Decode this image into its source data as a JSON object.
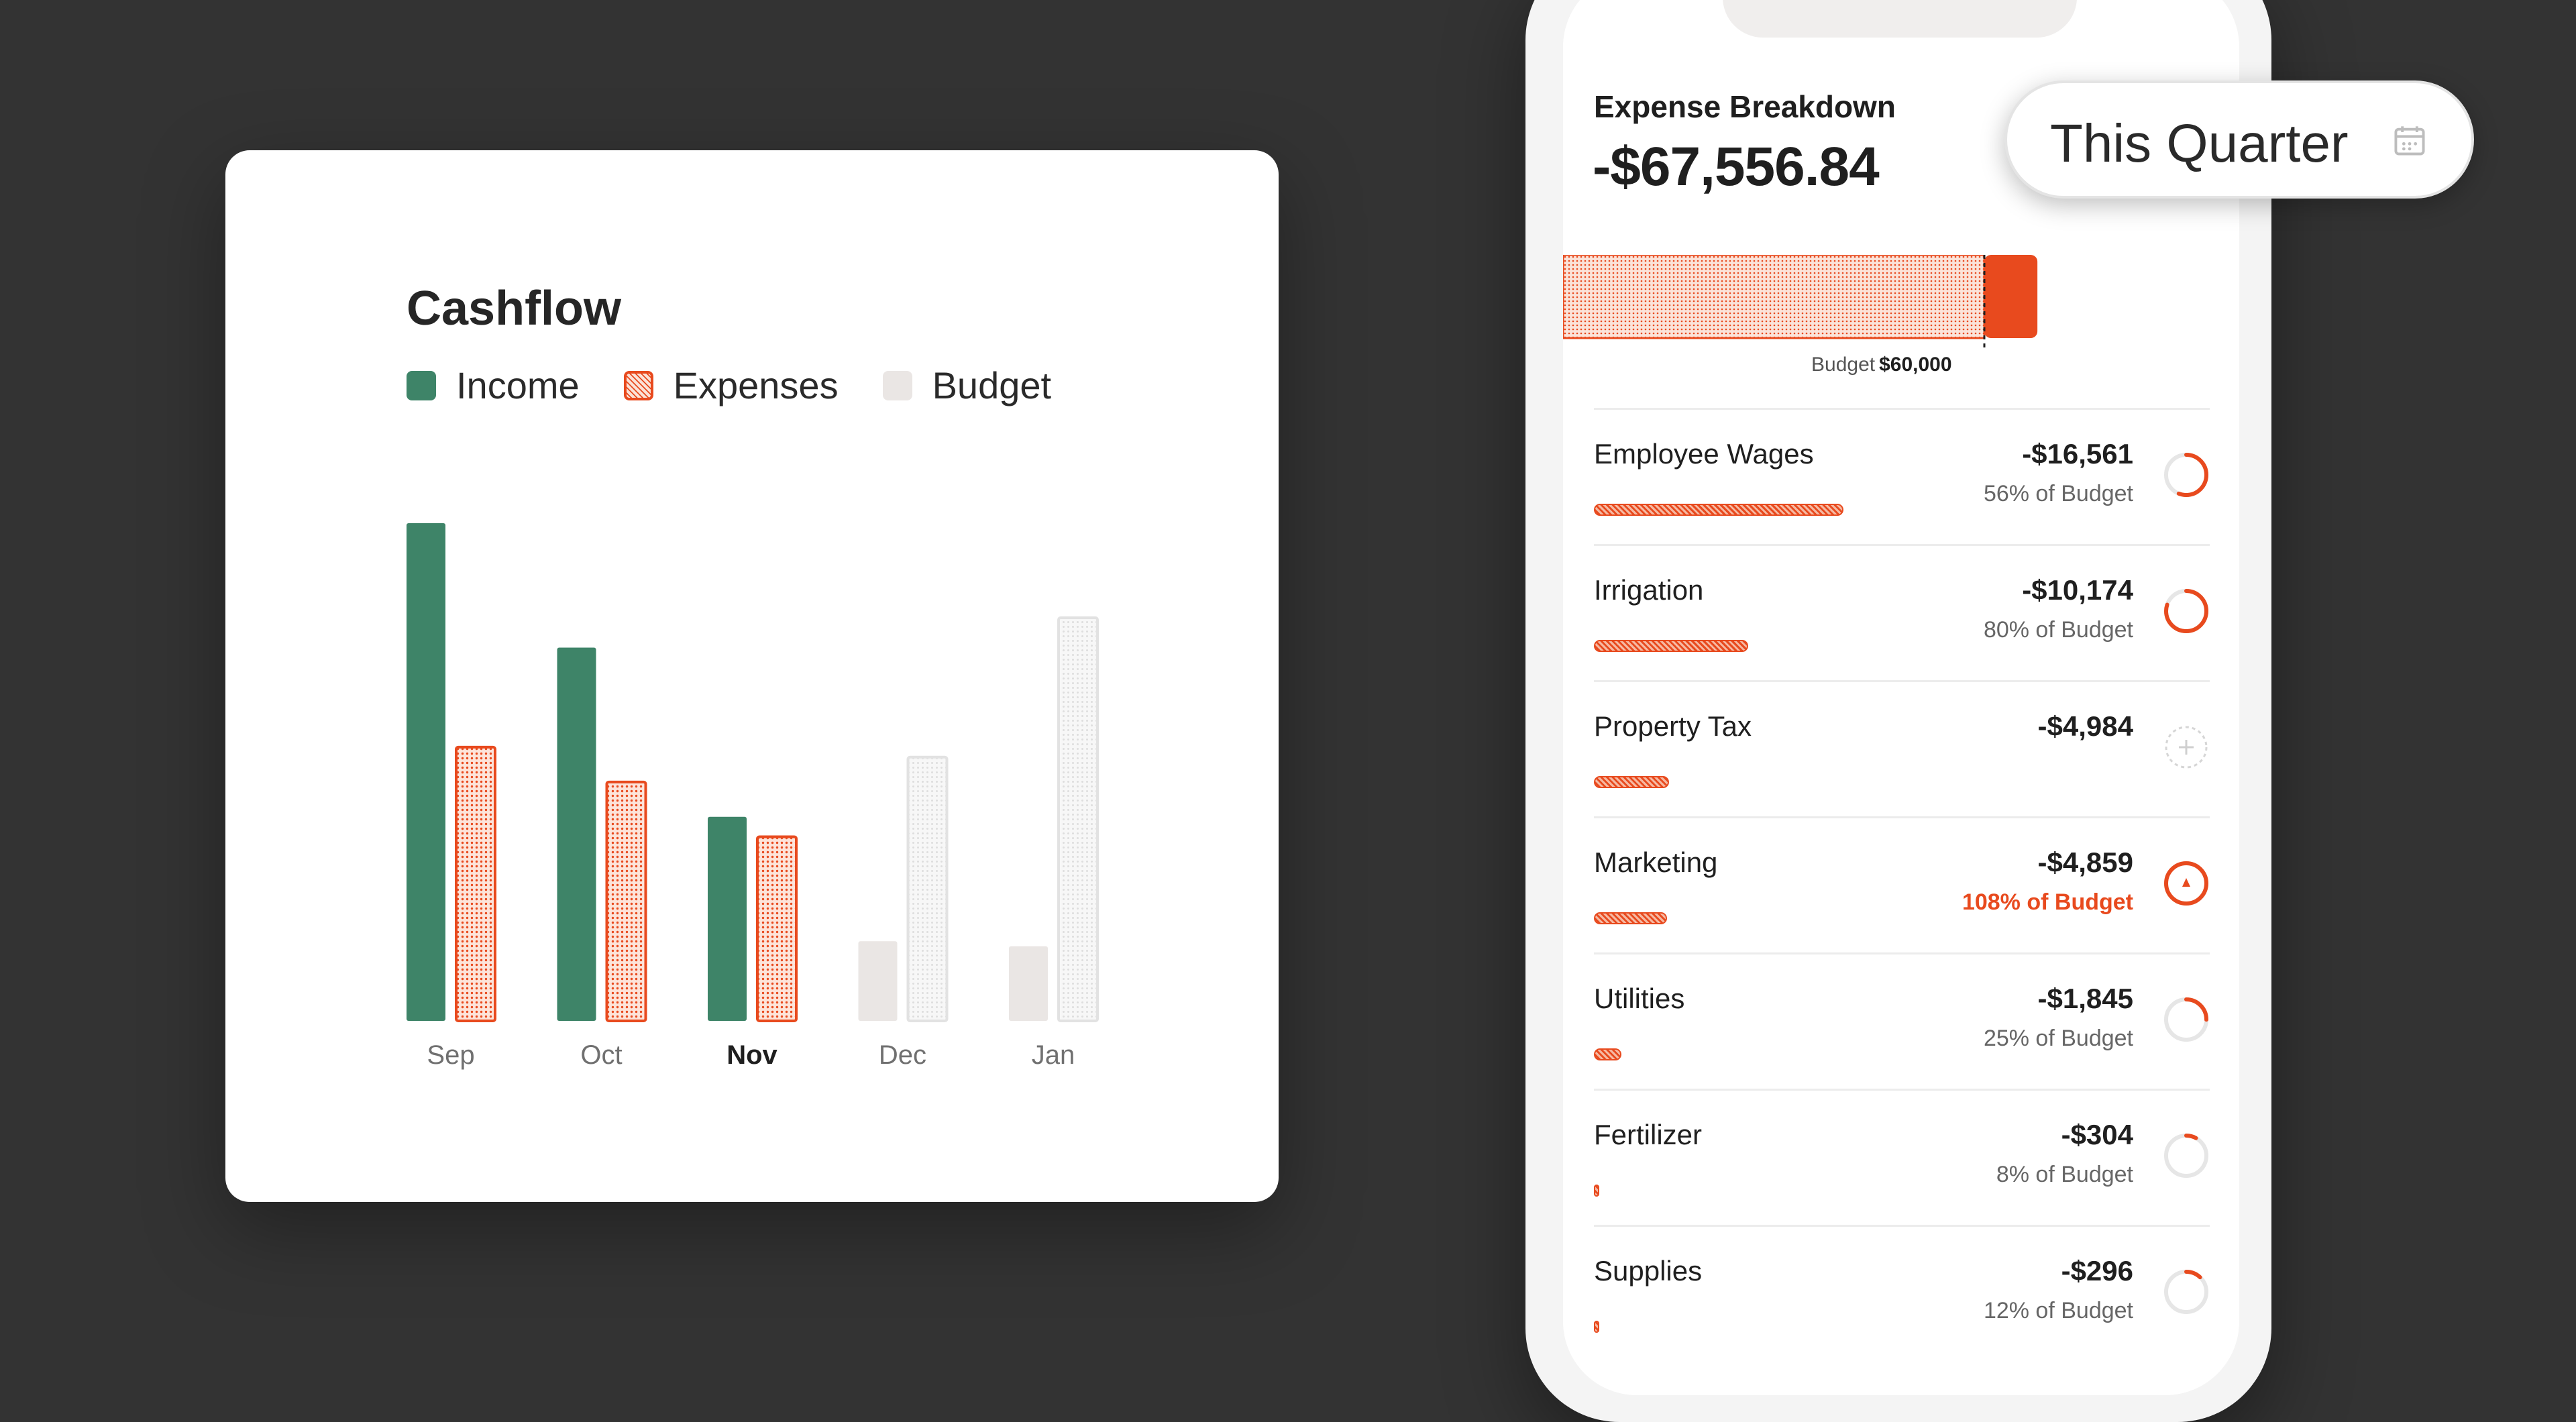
{
  "cashflow_card": {
    "title": "Cashflow",
    "legend": [
      {
        "label": "Income",
        "color": "#3e8468"
      },
      {
        "label": "Expenses",
        "color": "#e84a1e"
      },
      {
        "label": "Budget",
        "color": "#eae6e4"
      }
    ]
  },
  "chart_data": {
    "type": "bar",
    "title": "Cashflow",
    "categories": [
      "Sep",
      "Oct",
      "Nov",
      "Dec",
      "Jan"
    ],
    "highlighted_category": "Nov",
    "series": [
      {
        "name": "Income",
        "values": [
          100,
          75,
          41,
          16,
          15
        ]
      },
      {
        "name": "Expenses",
        "values": [
          55,
          48,
          37,
          null,
          null
        ]
      },
      {
        "name": "Budget",
        "values": [
          null,
          null,
          null,
          53,
          81
        ]
      }
    ],
    "ylim": [
      0,
      100
    ],
    "grid": false,
    "legend_position": "top-left",
    "colors": {
      "income": "#3e8468",
      "expenses": "#e84a1e",
      "budget": "#eae6e4",
      "budget_projected": "#f3f3f3"
    }
  },
  "expense_screen": {
    "title": "Expense Breakdown",
    "total": "-$67,556.84",
    "budget_label": "Budget",
    "budget_value": "$60,000",
    "spent_fraction_of_budget": 1.126,
    "items": [
      {
        "name": "Employee Wages",
        "amount": "-$16,561",
        "pct_label": "56% of Budget",
        "bar_fraction": 0.245,
        "ring_fraction": 0.56,
        "ring_state": "normal"
      },
      {
        "name": "Irrigation",
        "amount": "-$10,174",
        "pct_label": "80% of Budget",
        "bar_fraction": 0.151,
        "ring_fraction": 0.8,
        "ring_state": "normal"
      },
      {
        "name": "Property Tax",
        "amount": "-$4,984",
        "pct_label": "",
        "bar_fraction": 0.074,
        "ring_fraction": 0,
        "ring_state": "add"
      },
      {
        "name": "Marketing",
        "amount": "-$4,859",
        "pct_label": "108% of Budget",
        "bar_fraction": 0.072,
        "ring_fraction": 1.0,
        "ring_state": "over"
      },
      {
        "name": "Utilities",
        "amount": "-$1,845",
        "pct_label": "25% of Budget",
        "bar_fraction": 0.027,
        "ring_fraction": 0.25,
        "ring_state": "normal"
      },
      {
        "name": "Fertilizer",
        "amount": "-$304",
        "pct_label": "8% of Budget",
        "bar_fraction": 0.005,
        "ring_fraction": 0.08,
        "ring_state": "normal"
      },
      {
        "name": "Supplies",
        "amount": "-$296",
        "pct_label": "12% of Budget",
        "bar_fraction": 0.004,
        "ring_fraction": 0.12,
        "ring_state": "normal"
      }
    ]
  },
  "period_picker": {
    "label": "This Quarter",
    "icon": "calendar-icon"
  }
}
